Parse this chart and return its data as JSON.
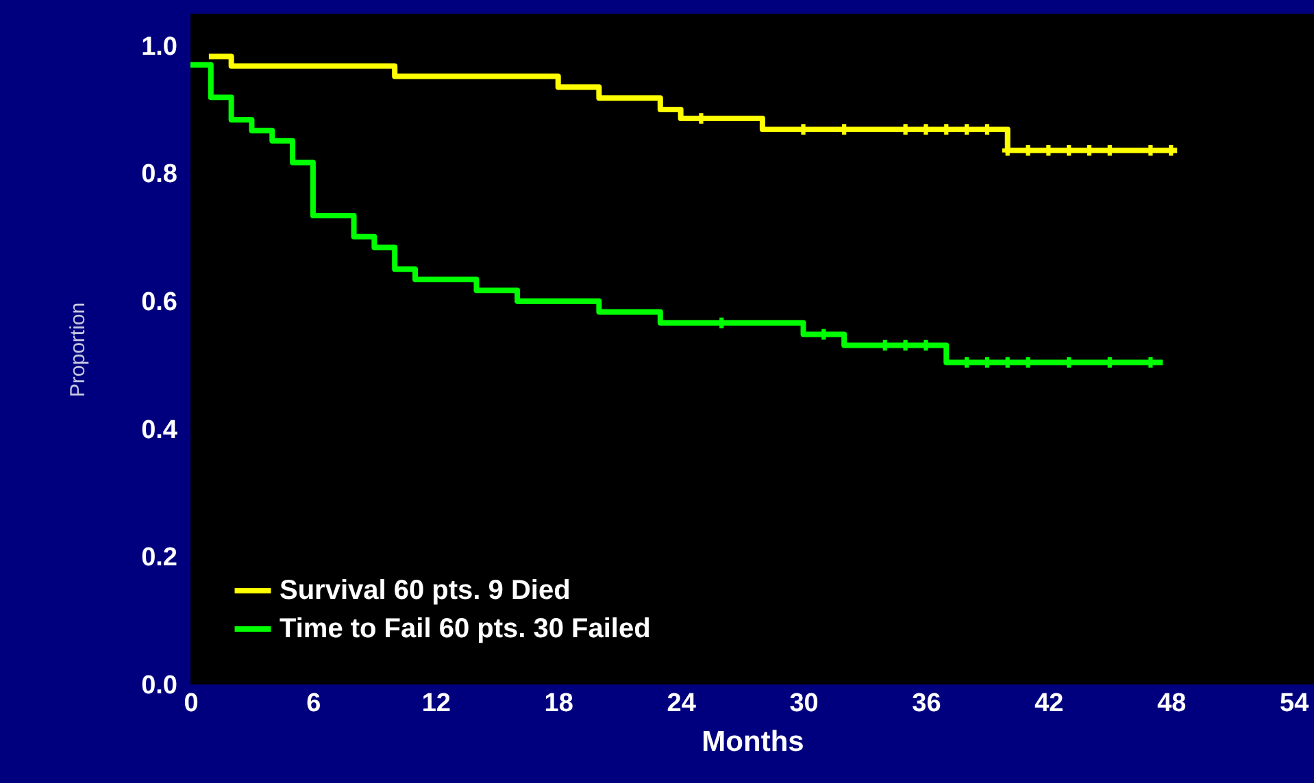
{
  "chart_data": {
    "type": "step",
    "xlabel": "Months",
    "ylabel": "Proportion",
    "xlim": [
      0,
      55
    ],
    "xticks": [
      0,
      6,
      12,
      18,
      24,
      30,
      36,
      42,
      48,
      54
    ],
    "ylim": [
      0,
      1.05
    ],
    "yticks": [
      {
        "value": 0,
        "label": "0.0"
      },
      {
        "value": 0.2,
        "label": "0.2"
      },
      {
        "value": 0.4,
        "label": "0.4"
      },
      {
        "value": 0.6,
        "label": "0.6"
      },
      {
        "value": 0.8,
        "label": "0.8"
      },
      {
        "value": 1,
        "label": "1.0"
      }
    ],
    "grid": false,
    "legend": "bottom left",
    "line_style": "solid",
    "series": [
      {
        "name": "Survival 60 pts. 9 Died",
        "color": "#ffff00",
        "x": [
          0.9,
          2,
          10,
          18,
          20,
          23,
          24,
          28,
          40,
          48.3
        ],
        "values": [
          0.983,
          0.968,
          0.952,
          0.935,
          0.918,
          0.9,
          0.886,
          0.869,
          0.836,
          0.836
        ]
      },
      {
        "name": "Time to Fail 60 pts. 30 Failed",
        "color": "#00ff00",
        "x": [
          0,
          1,
          2,
          3,
          4,
          5,
          6,
          8,
          9,
          10,
          11,
          14,
          16,
          20,
          23,
          30,
          32,
          37,
          47.6
        ],
        "values": [
          0.97,
          0.919,
          0.884,
          0.867,
          0.851,
          0.817,
          0.734,
          0.701,
          0.684,
          0.65,
          0.634,
          0.617,
          0.6,
          0.583,
          0.566,
          0.548,
          0.531,
          0.504,
          0.504
        ]
      },
      {
        "type": "scatter",
        "marker": "cross",
        "color": "#ffff00",
        "x": [
          25,
          30,
          32,
          35,
          36,
          37,
          38,
          39,
          40,
          41,
          42,
          43,
          44,
          45,
          47,
          48
        ],
        "values": [
          0.886,
          0.869,
          0.869,
          0.869,
          0.869,
          0.869,
          0.869,
          0.869,
          0.836,
          0.836,
          0.836,
          0.836,
          0.836,
          0.836,
          0.836,
          0.836
        ]
      },
      {
        "type": "scatter",
        "marker": "cross",
        "color": "#00ff00",
        "x": [
          26,
          31,
          34,
          35,
          36,
          38,
          39,
          40,
          41,
          43,
          45,
          47
        ],
        "values": [
          0.566,
          0.548,
          0.531,
          0.531,
          0.531,
          0.504,
          0.504,
          0.504,
          0.504,
          0.504,
          0.504,
          0.504
        ]
      }
    ]
  }
}
